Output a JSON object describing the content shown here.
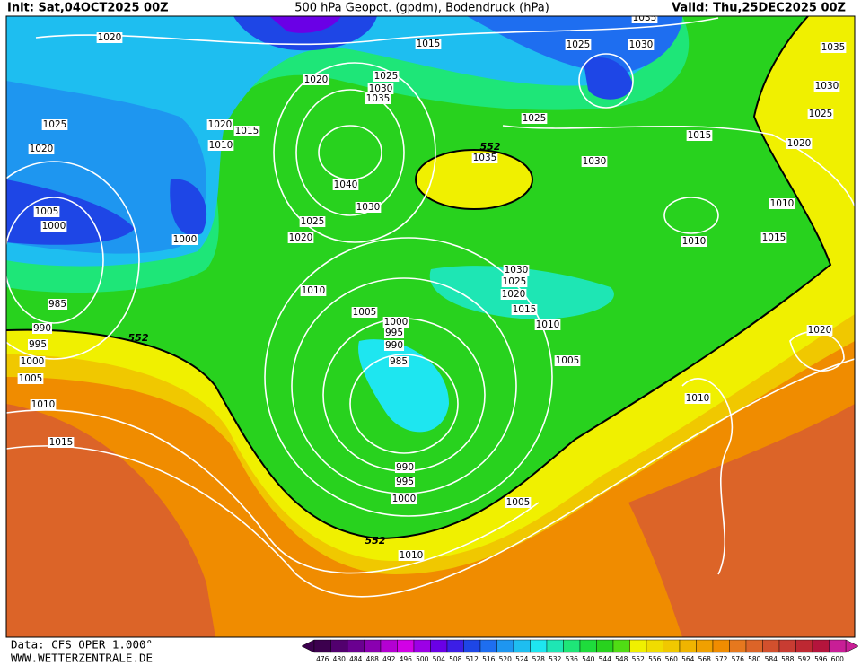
{
  "header": {
    "init": "Init: Sat,04OCT2025 00Z",
    "title": "500 hPa Geopot. (gpdm), Bodendruck (hPa)",
    "valid": "Valid: Thu,25DEC2025 00Z"
  },
  "map": {
    "isobar_labels": [
      "1035",
      "1020",
      "1015",
      "1025",
      "1030",
      "1035",
      "1020",
      "1025",
      "1030",
      "1035",
      "1030",
      "1025",
      "1025",
      "1020",
      "1015",
      "1025",
      "1010",
      "1020",
      "1035",
      "1015",
      "1020",
      "1030",
      "1040",
      "1005",
      "1030",
      "1010",
      "1000",
      "1025",
      "1020",
      "1000",
      "1010",
      "1015",
      "1030",
      "1025",
      "1020",
      "1010",
      "985",
      "1015",
      "1005",
      "1000",
      "1010",
      "990",
      "995",
      "990",
      "995",
      "1020",
      "1000",
      "985",
      "1005",
      "1005",
      "1010",
      "1010",
      "1015",
      "990",
      "995",
      "1000",
      "1005",
      "1010"
    ],
    "contour_labels": [
      "552",
      "552",
      "552"
    ]
  },
  "footer": {
    "data": "Data: CFS OPER 1.000°",
    "site": "WWW.WETTERZENTRALE.DE"
  },
  "colorbar": {
    "labels": [
      476,
      480,
      484,
      488,
      492,
      496,
      500,
      504,
      508,
      512,
      516,
      520,
      524,
      528,
      532,
      536,
      540,
      544,
      548,
      552,
      556,
      560,
      564,
      568,
      572,
      576,
      580,
      584,
      588,
      592,
      596,
      600
    ],
    "colors": [
      "#3c004e",
      "#52006e",
      "#6a0090",
      "#8a00b0",
      "#b400d2",
      "#d200e6",
      "#9c00e6",
      "#6a00e6",
      "#3c1ee6",
      "#1e46e6",
      "#1e6ef0",
      "#1e96f0",
      "#1ebef0",
      "#1ee6f0",
      "#1ee6b4",
      "#1ee678",
      "#1edc3c",
      "#28d21e",
      "#50dc14",
      "#f0f000",
      "#f0dc00",
      "#f0c800",
      "#f0b400",
      "#f0a000",
      "#f08c00",
      "#e6781e",
      "#dc6428",
      "#d2502d",
      "#c83c32",
      "#be2832",
      "#b4143c",
      "#c81e96"
    ]
  }
}
